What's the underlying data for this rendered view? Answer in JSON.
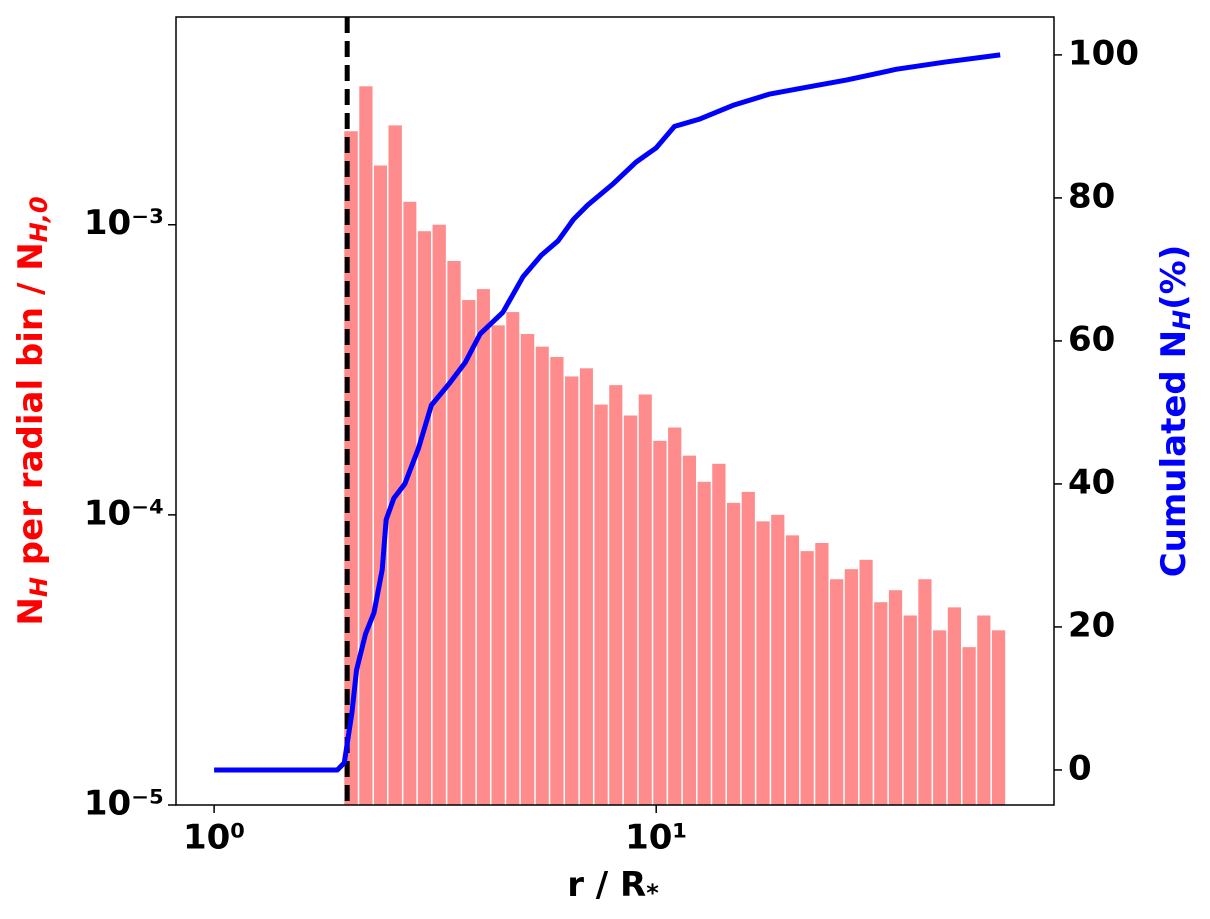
{
  "chart_data": {
    "type": "histogram",
    "xlabel": [
      "r / R",
      "*"
    ],
    "ylabel": [
      "N",
      "H",
      " per radial bin / N",
      "H,0"
    ],
    "y2label": [
      "Cumulated N",
      "H",
      "(%)"
    ],
    "xscale": "log",
    "yscale": "log",
    "xlim": [
      0.82,
      79.4
    ],
    "ylim": [
      1e-05,
      0.0052
    ],
    "y2lim": [
      -4.9,
      105.3
    ],
    "xticks": [
      {
        "value": 1,
        "label": "10⁰"
      },
      {
        "value": 10,
        "label": "10¹"
      }
    ],
    "yticks": [
      {
        "value": 1e-05,
        "label": "10⁻⁵"
      },
      {
        "value": 0.0001,
        "label": "10⁻⁴"
      },
      {
        "value": 0.001,
        "label": "10⁻³"
      }
    ],
    "y2ticks": [
      0,
      20,
      40,
      60,
      80,
      100
    ],
    "bins": [
      1.97,
      2.13,
      2.3,
      2.48,
      2.68,
      2.89,
      3.12,
      3.37,
      3.64,
      3.93,
      4.24,
      4.58,
      4.94,
      5.34,
      5.76,
      6.22,
      6.72,
      7.25,
      7.83,
      8.45,
      9.13,
      9.85,
      10.64,
      11.49,
      12.4,
      13.39,
      14.46,
      15.61,
      16.85,
      18.2,
      19.65,
      21.21,
      22.9,
      24.73,
      26.7,
      28.83,
      31.12,
      33.6,
      36.28,
      39.17,
      42.29,
      45.66,
      49.3,
      53.23,
      57.47,
      62.05
    ],
    "counts": [
      0.0021,
      0.003,
      0.0016,
      0.0022,
      0.0012,
      0.00095,
      0.001,
      0.00075,
      0.00055,
      0.0006,
      0.00045,
      0.0005,
      0.00042,
      0.00038,
      0.00035,
      0.0003,
      0.00032,
      0.00024,
      0.00028,
      0.00022,
      0.00026,
      0.00018,
      0.0002,
      0.00016,
      0.00013,
      0.00015,
      0.00011,
      0.00012,
      9.5e-05,
      0.0001,
      8.5e-05,
      7.5e-05,
      8e-05,
      6e-05,
      6.5e-05,
      7e-05,
      5e-05,
      5.5e-05,
      4.5e-05,
      6e-05,
      4e-05,
      4.8e-05,
      3.5e-05,
      4.5e-05,
      4e-05
    ],
    "color": "#ff8c8c",
    "line": {
      "axis": "y2",
      "color": "#0000ff",
      "x": [
        1.0,
        1.9,
        1.97,
        2.05,
        2.1,
        2.2,
        2.3,
        2.4,
        2.45,
        2.55,
        2.7,
        2.9,
        3.1,
        3.4,
        3.7,
        4.0,
        4.5,
        5.0,
        5.5,
        6.0,
        6.5,
        7.0,
        8.0,
        9.0,
        10.0,
        11.0,
        12.5,
        15,
        18,
        22,
        27,
        35,
        45,
        60
      ],
      "values": [
        0,
        0,
        1,
        8,
        14,
        19,
        22,
        28,
        35,
        38,
        40,
        45,
        51,
        54,
        57,
        61,
        64,
        69,
        72,
        74,
        77,
        79,
        82,
        85,
        87,
        90,
        91,
        93,
        94.5,
        95.5,
        96.5,
        98,
        99,
        100
      ]
    },
    "vline": {
      "x": 2.0,
      "color": "#000000"
    }
  }
}
